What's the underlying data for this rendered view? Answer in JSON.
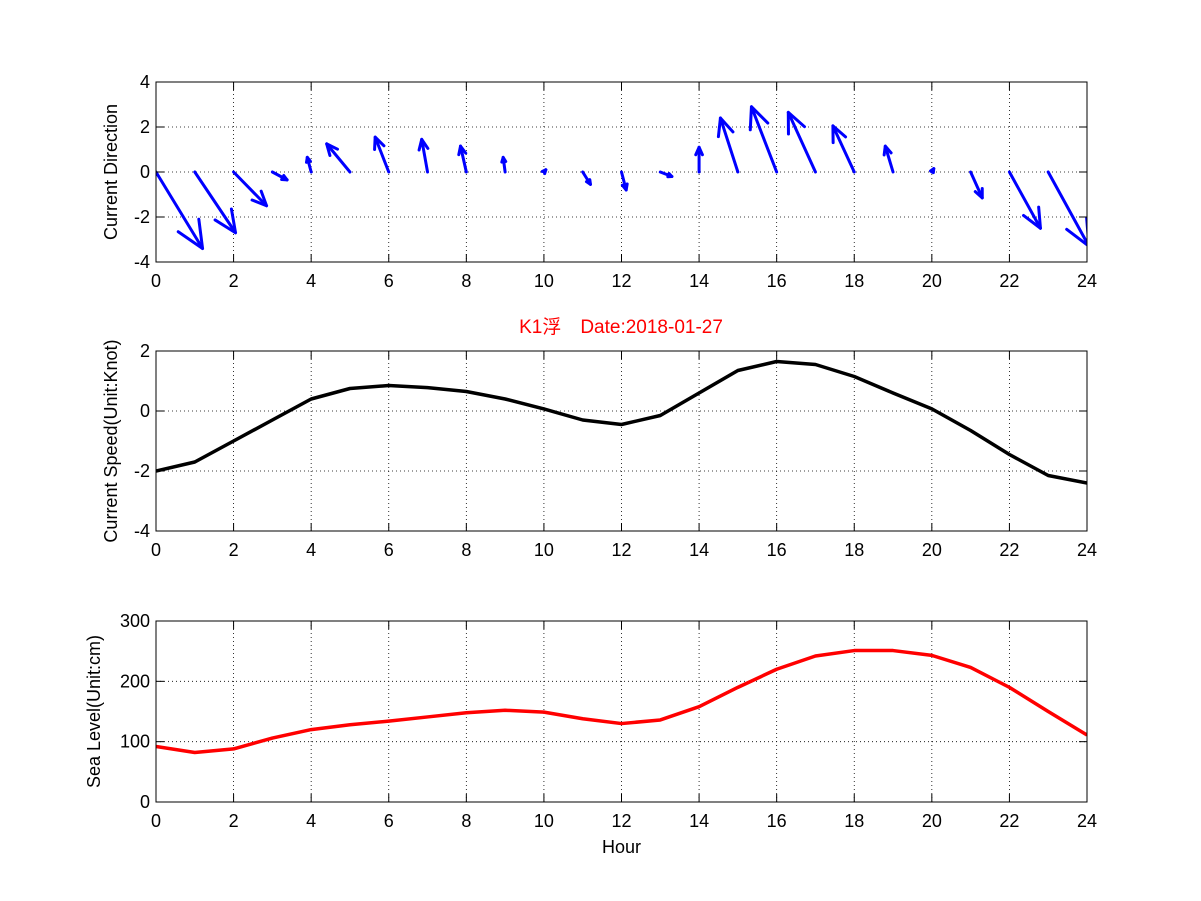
{
  "title": "K1浮　Date:2018-01-27",
  "title_color": "#ff0000",
  "chart_data": [
    {
      "type": "quiver",
      "id": "direction",
      "ylabel": "Current Direction",
      "xlabel": "",
      "xlim": [
        0,
        24
      ],
      "ylim": [
        -4,
        4
      ],
      "xticks": [
        0,
        2,
        4,
        6,
        8,
        10,
        12,
        14,
        16,
        18,
        20,
        22,
        24
      ],
      "yticks": [
        -4,
        -2,
        0,
        2,
        4
      ],
      "grid": true,
      "color": "#0000ff",
      "x": [
        0,
        1,
        2,
        3,
        4,
        5,
        6,
        7,
        8,
        9,
        10,
        11,
        12,
        13,
        14,
        15,
        16,
        17,
        18,
        19,
        20,
        21,
        22,
        23
      ],
      "u": [
        1.2,
        1.05,
        0.85,
        0.38,
        -0.1,
        -0.6,
        -0.35,
        -0.15,
        -0.15,
        -0.05,
        0.05,
        0.2,
        0.12,
        0.3,
        0.0,
        -0.45,
        -0.65,
        -0.7,
        -0.55,
        -0.2,
        0.05,
        0.3,
        0.8,
        1.05
      ],
      "v": [
        -3.4,
        -2.7,
        -1.5,
        -0.35,
        0.65,
        1.25,
        1.55,
        1.45,
        1.15,
        0.65,
        0.1,
        -0.55,
        -0.8,
        -0.2,
        1.1,
        2.4,
        2.9,
        2.65,
        2.05,
        1.15,
        0.15,
        -1.15,
        -2.5,
        -3.3
      ]
    },
    {
      "type": "line",
      "id": "speed",
      "ylabel": "Current Speed(Unit:Knot)",
      "xlabel": "",
      "xlim": [
        0,
        24
      ],
      "ylim": [
        -4,
        2
      ],
      "xticks": [
        0,
        2,
        4,
        6,
        8,
        10,
        12,
        14,
        16,
        18,
        20,
        22,
        24
      ],
      "yticks": [
        -4,
        -2,
        0,
        2
      ],
      "grid": true,
      "color": "#000000",
      "x": [
        0,
        1,
        2,
        3,
        4,
        5,
        6,
        7,
        8,
        9,
        10,
        11,
        12,
        13,
        14,
        15,
        16,
        17,
        18,
        19,
        20,
        21,
        22,
        23,
        24
      ],
      "y": [
        -2.0,
        -1.7,
        -1.0,
        -0.3,
        0.4,
        0.75,
        0.85,
        0.78,
        0.65,
        0.4,
        0.07,
        -0.3,
        -0.45,
        -0.15,
        0.6,
        1.35,
        1.65,
        1.55,
        1.15,
        0.6,
        0.07,
        -0.65,
        -1.45,
        -2.15,
        -2.4
      ]
    },
    {
      "type": "line",
      "id": "sealevel",
      "ylabel": "Sea Level(Unit:cm)",
      "xlabel": "Hour",
      "xlim": [
        0,
        24
      ],
      "ylim": [
        0,
        300
      ],
      "xticks": [
        0,
        2,
        4,
        6,
        8,
        10,
        12,
        14,
        16,
        18,
        20,
        22,
        24
      ],
      "yticks": [
        0,
        100,
        200,
        300
      ],
      "grid": true,
      "color": "#ff0000",
      "x": [
        0,
        1,
        2,
        3,
        4,
        5,
        6,
        7,
        8,
        9,
        10,
        11,
        12,
        13,
        14,
        15,
        16,
        17,
        18,
        19,
        20,
        21,
        22,
        23,
        24
      ],
      "y": [
        92,
        82,
        88,
        106,
        120,
        128,
        134,
        141,
        148,
        152,
        149,
        138,
        130,
        136,
        158,
        190,
        220,
        242,
        251,
        251,
        243,
        223,
        190,
        150,
        111
      ]
    }
  ]
}
